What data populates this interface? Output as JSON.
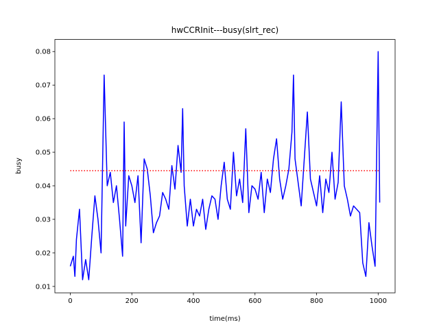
{
  "chart_data": {
    "type": "line",
    "title": "hwCCRInit---busy(slrt_rec)",
    "x_label": "time(ms)",
    "y_label": "busy",
    "x": [
      0,
      10,
      15,
      20,
      30,
      40,
      50,
      60,
      70,
      80,
      90,
      100,
      110,
      120,
      130,
      140,
      150,
      160,
      170,
      175,
      180,
      190,
      200,
      210,
      220,
      230,
      240,
      250,
      260,
      270,
      280,
      290,
      300,
      310,
      320,
      330,
      340,
      350,
      360,
      365,
      370,
      380,
      390,
      400,
      410,
      420,
      430,
      440,
      450,
      460,
      470,
      480,
      490,
      500,
      510,
      520,
      530,
      540,
      550,
      560,
      570,
      580,
      590,
      600,
      610,
      620,
      630,
      640,
      650,
      660,
      670,
      680,
      690,
      700,
      710,
      720,
      725,
      730,
      740,
      750,
      760,
      770,
      780,
      790,
      800,
      810,
      820,
      830,
      840,
      850,
      860,
      870,
      880,
      890,
      900,
      910,
      920,
      930,
      940,
      950,
      960,
      970,
      980,
      990,
      1000,
      1005
    ],
    "series": [
      {
        "name": "busy",
        "color": "#0000ff",
        "values": [
          0.016,
          0.019,
          0.013,
          0.024,
          0.033,
          0.012,
          0.018,
          0.012,
          0.025,
          0.037,
          0.03,
          0.02,
          0.073,
          0.04,
          0.044,
          0.035,
          0.04,
          0.03,
          0.019,
          0.059,
          0.028,
          0.043,
          0.04,
          0.035,
          0.043,
          0.023,
          0.048,
          0.045,
          0.037,
          0.026,
          0.029,
          0.031,
          0.038,
          0.036,
          0.033,
          0.046,
          0.039,
          0.052,
          0.044,
          0.063,
          0.04,
          0.028,
          0.036,
          0.028,
          0.033,
          0.031,
          0.036,
          0.027,
          0.033,
          0.037,
          0.036,
          0.03,
          0.04,
          0.047,
          0.036,
          0.033,
          0.05,
          0.037,
          0.042,
          0.035,
          0.057,
          0.032,
          0.04,
          0.039,
          0.036,
          0.044,
          0.032,
          0.042,
          0.038,
          0.048,
          0.054,
          0.042,
          0.036,
          0.04,
          0.045,
          0.056,
          0.073,
          0.048,
          0.041,
          0.034,
          0.048,
          0.062,
          0.042,
          0.038,
          0.034,
          0.043,
          0.032,
          0.042,
          0.038,
          0.05,
          0.036,
          0.041,
          0.065,
          0.04,
          0.036,
          0.031,
          0.034,
          0.033,
          0.032,
          0.017,
          0.013,
          0.029,
          0.022,
          0.016,
          0.08,
          0.035
        ]
      }
    ],
    "reference_line": {
      "value": 0.0445,
      "xlim": [
        0,
        1005
      ],
      "color": "#ff0000"
    },
    "xlim": [
      -50,
      1055
    ],
    "ylim": [
      0.0081,
      0.0836
    ],
    "xticks": [
      0,
      200,
      400,
      600,
      800,
      1000
    ],
    "yticks": [
      0.01,
      0.02,
      0.03,
      0.04,
      0.05,
      0.06,
      0.07,
      0.08
    ]
  }
}
